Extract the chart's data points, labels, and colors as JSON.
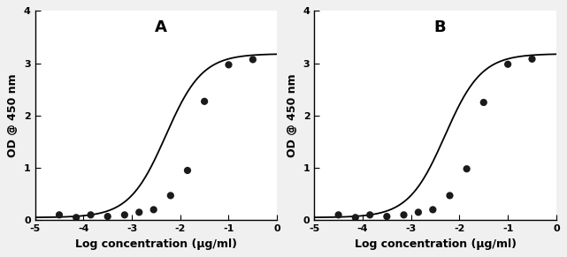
{
  "panel_A_points_x": [
    -4.5,
    -4.15,
    -3.85,
    -3.5,
    -3.15,
    -2.85,
    -2.55,
    -2.2,
    -1.85,
    -1.5,
    -1.0,
    -0.5
  ],
  "panel_A_points_y": [
    0.1,
    0.05,
    0.1,
    0.07,
    0.1,
    0.15,
    0.2,
    0.47,
    0.95,
    2.27,
    2.97,
    3.07
  ],
  "panel_B_points_x": [
    -4.5,
    -4.15,
    -3.85,
    -3.5,
    -3.15,
    -2.85,
    -2.55,
    -2.2,
    -1.85,
    -1.5,
    -1.0,
    -0.5
  ],
  "panel_B_points_y": [
    0.1,
    0.05,
    0.1,
    0.07,
    0.1,
    0.15,
    0.2,
    0.47,
    0.98,
    2.25,
    2.98,
    3.08
  ],
  "xlabel": "Log concentration (μg/ml)",
  "ylabel": "OD @ 450 nm",
  "xlim": [
    -5,
    0
  ],
  "ylim": [
    0,
    4
  ],
  "xticks": [
    -5,
    -4,
    -3,
    -2,
    -1,
    0
  ],
  "yticks": [
    0,
    1,
    2,
    3,
    4
  ],
  "label_A": "A",
  "label_B": "B",
  "background_color": "#f0f0f0",
  "plot_bg_color": "#ffffff",
  "line_color": "#000000",
  "dot_color": "#1a1a1a",
  "dot_size": 35,
  "font_size_label": 9,
  "font_size_tick": 8,
  "font_size_panel": 13,
  "ec50_A": -2.3,
  "ec50_B": -2.3,
  "hill_A": 1.15,
  "hill_B": 1.15,
  "bottom_A": 0.05,
  "bottom_B": 0.05,
  "top_A": 3.18,
  "top_B": 3.18
}
